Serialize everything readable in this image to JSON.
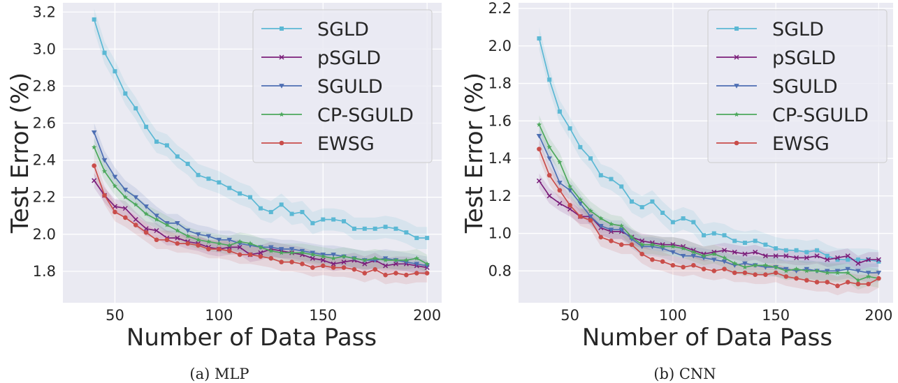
{
  "figure": {
    "subcaptions": [
      "(a) MLP",
      "(b) CNN"
    ]
  },
  "chart_data": [
    {
      "type": "line",
      "caption": "(a) MLP",
      "xlabel": "Number of Data Pass",
      "ylabel": "Test Error (%)",
      "xlim": [
        25,
        207
      ],
      "ylim": [
        1.63,
        3.25
      ],
      "xticks": [
        50,
        100,
        150,
        200
      ],
      "yticks": [
        1.8,
        2.0,
        2.2,
        2.4,
        2.6,
        2.8,
        3.0,
        3.2
      ],
      "grid": true,
      "legend_position": "top-right",
      "x": [
        40,
        45,
        50,
        55,
        60,
        65,
        70,
        75,
        80,
        85,
        90,
        95,
        100,
        105,
        110,
        115,
        120,
        125,
        130,
        135,
        140,
        145,
        150,
        155,
        160,
        165,
        170,
        175,
        180,
        185,
        190,
        195,
        200
      ],
      "series": [
        {
          "name": "SGLD",
          "color": "#5bb8d4",
          "marker": "square",
          "band": 0.06,
          "values": [
            3.16,
            2.98,
            2.88,
            2.76,
            2.68,
            2.58,
            2.5,
            2.48,
            2.42,
            2.38,
            2.32,
            2.3,
            2.28,
            2.25,
            2.22,
            2.2,
            2.14,
            2.12,
            2.16,
            2.11,
            2.12,
            2.06,
            2.08,
            2.08,
            2.07,
            2.03,
            2.03,
            2.03,
            2.04,
            2.03,
            2.01,
            1.98,
            1.98
          ]
        },
        {
          "name": "pSGLD",
          "color": "#7b1e7a",
          "marker": "x",
          "band": 0.04,
          "values": [
            2.29,
            2.21,
            2.15,
            2.14,
            2.08,
            2.03,
            2.02,
            1.98,
            1.98,
            1.96,
            1.95,
            1.93,
            1.92,
            1.93,
            1.93,
            1.89,
            1.9,
            1.92,
            1.91,
            1.9,
            1.89,
            1.87,
            1.86,
            1.84,
            1.85,
            1.86,
            1.84,
            1.86,
            1.83,
            1.84,
            1.84,
            1.83,
            1.82
          ]
        },
        {
          "name": "SGULD",
          "color": "#4e6fb3",
          "marker": "triangle-down",
          "band": 0.05,
          "values": [
            2.55,
            2.4,
            2.31,
            2.24,
            2.2,
            2.15,
            2.1,
            2.06,
            2.06,
            2.02,
            2.0,
            1.99,
            1.97,
            1.97,
            1.95,
            1.94,
            1.93,
            1.93,
            1.92,
            1.92,
            1.91,
            1.9,
            1.89,
            1.89,
            1.88,
            1.87,
            1.86,
            1.86,
            1.87,
            1.86,
            1.85,
            1.84,
            1.83
          ]
        },
        {
          "name": "CP-SGULD",
          "color": "#4ca85c",
          "marker": "star",
          "band": 0.05,
          "values": [
            2.47,
            2.34,
            2.26,
            2.2,
            2.16,
            2.11,
            2.08,
            2.05,
            2.02,
            1.99,
            1.97,
            1.96,
            1.95,
            1.94,
            1.96,
            1.95,
            1.93,
            1.91,
            1.9,
            1.9,
            1.9,
            1.89,
            1.88,
            1.87,
            1.88,
            1.87,
            1.86,
            1.87,
            1.86,
            1.86,
            1.86,
            1.87,
            1.84
          ]
        },
        {
          "name": "EWSG",
          "color": "#c94d4a",
          "marker": "circle",
          "band": 0.05,
          "values": [
            2.37,
            2.21,
            2.12,
            2.09,
            2.05,
            2.01,
            1.97,
            1.97,
            1.95,
            1.95,
            1.94,
            1.92,
            1.92,
            1.91,
            1.89,
            1.89,
            1.88,
            1.87,
            1.85,
            1.85,
            1.84,
            1.82,
            1.83,
            1.82,
            1.82,
            1.81,
            1.79,
            1.81,
            1.78,
            1.79,
            1.78,
            1.79,
            1.79
          ]
        }
      ]
    },
    {
      "type": "line",
      "caption": "(b) CNN",
      "xlabel": "Number of Data Pass",
      "ylabel": "Test Error (%)",
      "xlim": [
        25,
        207
      ],
      "ylim": [
        0.63,
        2.23
      ],
      "xticks": [
        50,
        100,
        150,
        200
      ],
      "yticks": [
        0.8,
        1.0,
        1.2,
        1.4,
        1.6,
        1.8,
        2.0,
        2.2
      ],
      "grid": true,
      "legend_position": "top-right",
      "x": [
        35,
        40,
        45,
        50,
        55,
        60,
        65,
        70,
        75,
        80,
        85,
        90,
        95,
        100,
        105,
        110,
        115,
        120,
        125,
        130,
        135,
        140,
        145,
        150,
        155,
        160,
        165,
        170,
        175,
        180,
        185,
        190,
        195,
        200
      ],
      "series": [
        {
          "name": "SGLD",
          "color": "#5bb8d4",
          "marker": "square",
          "band": 0.06,
          "values": [
            2.04,
            1.82,
            1.65,
            1.56,
            1.46,
            1.4,
            1.31,
            1.29,
            1.25,
            1.17,
            1.14,
            1.17,
            1.11,
            1.06,
            1.08,
            1.06,
            0.99,
            1.0,
            0.99,
            0.96,
            0.95,
            0.96,
            0.94,
            0.92,
            0.91,
            0.91,
            0.9,
            0.91,
            0.88,
            0.86,
            0.86,
            0.86,
            0.86,
            0.85
          ]
        },
        {
          "name": "pSGLD",
          "color": "#7b1e7a",
          "marker": "x",
          "band": 0.04,
          "values": [
            1.28,
            1.2,
            1.16,
            1.13,
            1.09,
            1.09,
            1.03,
            1.01,
            1.01,
            0.98,
            0.96,
            0.95,
            0.94,
            0.94,
            0.93,
            0.91,
            0.89,
            0.9,
            0.91,
            0.9,
            0.89,
            0.9,
            0.88,
            0.88,
            0.88,
            0.87,
            0.87,
            0.88,
            0.86,
            0.87,
            0.88,
            0.84,
            0.86,
            0.86
          ]
        },
        {
          "name": "SGULD",
          "color": "#4e6fb3",
          "marker": "triangle-down",
          "band": 0.05,
          "values": [
            1.52,
            1.4,
            1.27,
            1.23,
            1.16,
            1.09,
            1.04,
            1.02,
            1.02,
            0.97,
            0.93,
            0.93,
            0.92,
            0.9,
            0.88,
            0.88,
            0.87,
            0.86,
            0.85,
            0.83,
            0.84,
            0.83,
            0.82,
            0.82,
            0.81,
            0.8,
            0.81,
            0.8,
            0.8,
            0.8,
            0.81,
            0.8,
            0.79,
            0.79
          ]
        },
        {
          "name": "CP-SGULD",
          "color": "#4ca85c",
          "marker": "star",
          "band": 0.05,
          "values": [
            1.58,
            1.46,
            1.38,
            1.25,
            1.18,
            1.12,
            1.08,
            1.05,
            1.04,
            0.98,
            0.94,
            0.94,
            0.93,
            0.93,
            0.92,
            0.9,
            0.88,
            0.89,
            0.87,
            0.84,
            0.82,
            0.83,
            0.83,
            0.82,
            0.8,
            0.81,
            0.8,
            0.8,
            0.79,
            0.79,
            0.79,
            0.75,
            0.77,
            0.76
          ]
        },
        {
          "name": "EWSG",
          "color": "#c94d4a",
          "marker": "circle",
          "band": 0.05,
          "values": [
            1.45,
            1.31,
            1.23,
            1.15,
            1.09,
            1.07,
            0.98,
            0.96,
            0.94,
            0.94,
            0.89,
            0.86,
            0.85,
            0.83,
            0.82,
            0.83,
            0.81,
            0.8,
            0.81,
            0.79,
            0.79,
            0.78,
            0.78,
            0.79,
            0.77,
            0.76,
            0.75,
            0.74,
            0.74,
            0.72,
            0.74,
            0.73,
            0.73,
            0.76
          ]
        }
      ]
    }
  ]
}
